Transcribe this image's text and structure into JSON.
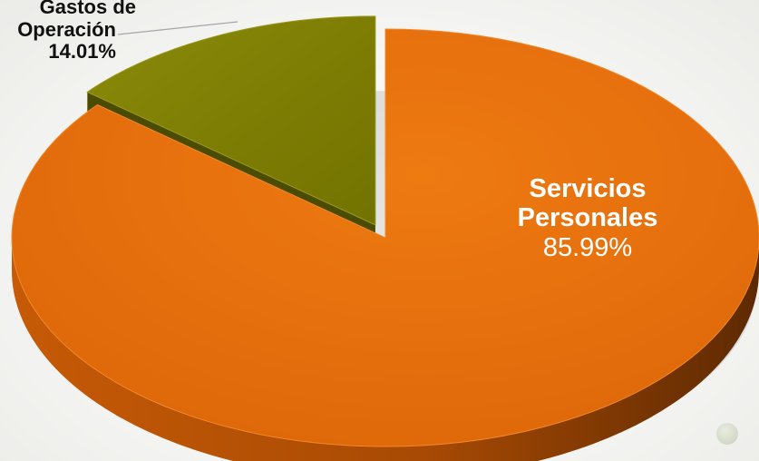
{
  "chart_data": {
    "type": "pie",
    "title": "",
    "slices": [
      {
        "id": "gastos",
        "name_line1": "Gastos de",
        "name_line2": "Operación",
        "value": 14.01,
        "value_label": "14.01%",
        "color": "#7f7f00",
        "exploded": true
      },
      {
        "id": "servicios",
        "name_line1": "Servicios",
        "name_line2": "Personales",
        "value": 85.99,
        "value_label": "85.99%",
        "color": "#e46c0a",
        "exploded": false
      }
    ],
    "legend": "none",
    "style": "3d"
  }
}
